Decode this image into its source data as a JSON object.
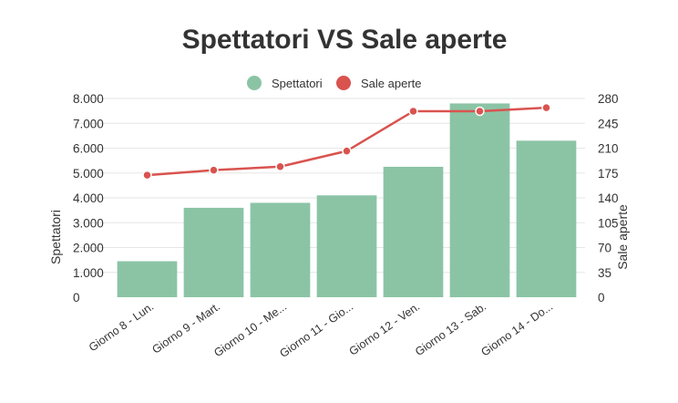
{
  "chart_data": {
    "type": "bar",
    "title": "Spettatori VS Sale aperte",
    "categories": [
      "Giorno 8 - Lun.",
      "Giorno 9 - Mart.",
      "Giorno 10 - Me...",
      "Giorno 11 - Gio...",
      "Giorno 12 - Ven.",
      "Giorno 13 - Sab.",
      "Giorno 14 - Do..."
    ],
    "series": [
      {
        "name": "Spettatori",
        "type": "bar",
        "axis": "left",
        "color": "#8bc4a5",
        "values": [
          1450,
          3600,
          3800,
          4100,
          5250,
          7800,
          6300
        ]
      },
      {
        "name": "Sale aperte",
        "type": "line",
        "axis": "right",
        "color": "#d9534f",
        "values": [
          172,
          179,
          184,
          206,
          262,
          262,
          267
        ]
      }
    ],
    "ylabel": "Spettatori",
    "y2label": "Sale aperte",
    "ylim": [
      0,
      8000
    ],
    "y2lim": [
      0,
      280
    ],
    "yticks": [
      "0",
      "1.000",
      "2.000",
      "3.000",
      "4.000",
      "5.000",
      "6.000",
      "7.000",
      "8.000"
    ],
    "y2ticks": [
      "0",
      "35",
      "70",
      "105",
      "140",
      "175",
      "210",
      "245",
      "280"
    ],
    "legend_position": "top-center",
    "grid": true
  }
}
